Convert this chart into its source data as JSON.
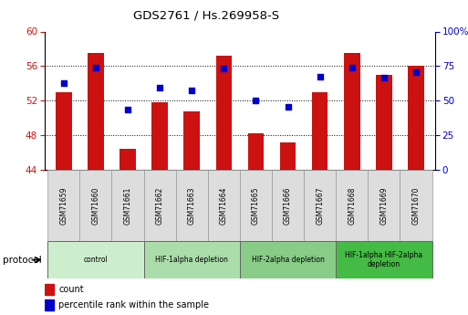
{
  "title": "GDS2761 / Hs.269958-S",
  "samples": [
    "GSM71659",
    "GSM71660",
    "GSM71661",
    "GSM71662",
    "GSM71663",
    "GSM71664",
    "GSM71665",
    "GSM71666",
    "GSM71667",
    "GSM71668",
    "GSM71669",
    "GSM71670"
  ],
  "bar_bottom": 44,
  "bar_tops": [
    53.0,
    57.5,
    46.5,
    51.8,
    50.8,
    57.2,
    48.2,
    47.2,
    53.0,
    57.5,
    55.0,
    56.0
  ],
  "percentile_values": [
    54.0,
    55.8,
    51.0,
    53.5,
    53.2,
    55.7,
    52.0,
    51.3,
    54.8,
    55.8,
    54.7,
    55.3
  ],
  "ylim_left": [
    44,
    60
  ],
  "ylim_right": [
    0,
    100
  ],
  "yticks_left": [
    44,
    48,
    52,
    56,
    60
  ],
  "yticks_right": [
    0,
    25,
    50,
    75,
    100
  ],
  "ytick_labels_right": [
    "0",
    "25",
    "50",
    "75",
    "100%"
  ],
  "bar_color": "#CC1111",
  "dot_color": "#0000CC",
  "tick_label_color_left": "#CC1111",
  "tick_label_color_right": "#0000CC",
  "group_configs": [
    {
      "label": "control",
      "cols": [
        0,
        1,
        2
      ],
      "color": "#cceecc"
    },
    {
      "label": "HIF-1alpha depletion",
      "cols": [
        3,
        4,
        5
      ],
      "color": "#aaddaa"
    },
    {
      "label": "HIF-2alpha depletion",
      "cols": [
        6,
        7,
        8
      ],
      "color": "#88cc88"
    },
    {
      "label": "HIF-1alpha HIF-2alpha\ndepletion",
      "cols": [
        9,
        10,
        11
      ],
      "color": "#44bb44"
    }
  ],
  "legend_count_label": "count",
  "legend_percentile_label": "percentile rank within the sample",
  "protocol_label": "protocol"
}
